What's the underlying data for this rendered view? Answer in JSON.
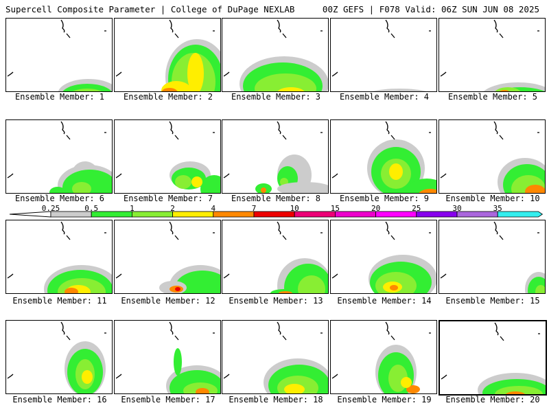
{
  "header": {
    "title": "Supercell Composite Parameter | College of DuPage NEXLAB",
    "valid": "00Z GEFS | F078 Valid: 06Z SUN JUN 08 2025"
  },
  "colorbar": {
    "labels": [
      "0.25",
      "0.5",
      "1",
      "2",
      "4",
      "7",
      "10",
      "15",
      "20",
      "25",
      "30",
      "35"
    ],
    "colors": [
      "#cccccc",
      "#33ee33",
      "#88ee33",
      "#ffee00",
      "#ff8800",
      "#ee0000",
      "#ee0077",
      "#ee00cc",
      "#ff00ff",
      "#8800ee",
      "#aa66dd",
      "#33eeee"
    ]
  },
  "panels": [
    {
      "label": "Ensemble Member: 1"
    },
    {
      "label": "Ensemble Member: 2"
    },
    {
      "label": "Ensemble Member: 3"
    },
    {
      "label": "Ensemble Member: 4"
    },
    {
      "label": "Ensemble Member: 5"
    },
    {
      "label": "Ensemble Member: 6"
    },
    {
      "label": "Ensemble Member: 7"
    },
    {
      "label": "Ensemble Member: 8"
    },
    {
      "label": "Ensemble Member: 9"
    },
    {
      "label": "Ensemble Member: 10"
    },
    {
      "label": "Ensemble Member: 11"
    },
    {
      "label": "Ensemble Member: 12"
    },
    {
      "label": "Ensemble Member: 13"
    },
    {
      "label": "Ensemble Member: 14"
    },
    {
      "label": "Ensemble Member: 15"
    },
    {
      "label": "Ensemble Member: 16"
    },
    {
      "label": "Ensemble Member: 17"
    },
    {
      "label": "Ensemble Member: 18"
    },
    {
      "label": "Ensemble Member: 19"
    },
    {
      "label": "Ensemble Member: 20"
    }
  ]
}
